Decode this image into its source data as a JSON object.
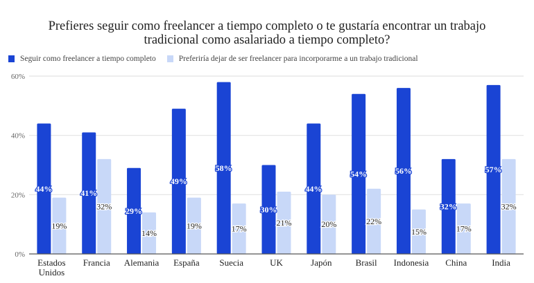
{
  "chart_data": {
    "type": "bar",
    "title": "Prefieres seguir como freelancer a tiempo completo o te gustaría encontrar un trabajo tradicional como asalariado a tiempo completo?",
    "title_lines": [
      "Prefieres seguir como freelancer a tiempo completo o te gustaría encontrar un trabajo",
      "tradicional como asalariado a tiempo completo?"
    ],
    "xlabel": "",
    "ylabel": "",
    "ylim": [
      0,
      60
    ],
    "yticks": [
      0,
      20,
      40,
      60
    ],
    "ytick_labels": [
      "0%",
      "20%",
      "40%",
      "60%"
    ],
    "grid": true,
    "legend_position": "top-left",
    "categories": [
      "Estados Unidos",
      "Francia",
      "Alemania",
      "España",
      "Suecia",
      "UK",
      "Japón",
      "Brasil",
      "Indonesia",
      "China",
      "India"
    ],
    "category_lines": [
      [
        "Estados",
        "Unidos"
      ],
      [
        "Francia"
      ],
      [
        "Alemania"
      ],
      [
        "España"
      ],
      [
        "Suecia"
      ],
      [
        "UK"
      ],
      [
        "Japón"
      ],
      [
        "Brasil"
      ],
      [
        "Indonesia"
      ],
      [
        "China"
      ],
      [
        "India"
      ]
    ],
    "series": [
      {
        "name": "Seguir como freelancer a tiempo completo",
        "color": "#1a44d4",
        "values": [
          44,
          41,
          29,
          49,
          58,
          30,
          44,
          54,
          56,
          32,
          57
        ],
        "data_labels": [
          "44%",
          "41%",
          "29%",
          "49%",
          "58%",
          "30%",
          "44%",
          "54%",
          "56%",
          "32%",
          "57%"
        ]
      },
      {
        "name": "Preferiría dejar de ser freelancer para incorporarme a un trabajo tradicional",
        "color": "#c8d8f8",
        "values": [
          19,
          32,
          14,
          19,
          17,
          21,
          20,
          22,
          15,
          17,
          32
        ],
        "data_labels": [
          "19%",
          "32%",
          "14%",
          "19%",
          "17%",
          "21%",
          "20%",
          "22%",
          "15%",
          "17%",
          "32%"
        ]
      }
    ]
  }
}
